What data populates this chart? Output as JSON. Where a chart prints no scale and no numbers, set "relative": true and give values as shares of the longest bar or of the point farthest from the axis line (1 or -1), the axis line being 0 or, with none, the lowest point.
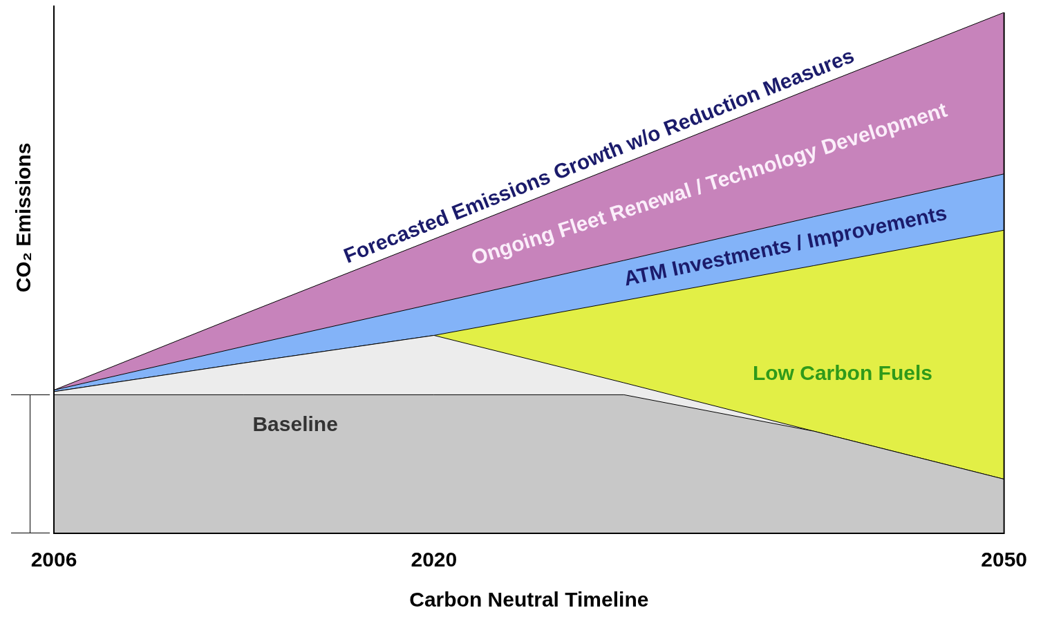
{
  "chart_data": {
    "type": "area",
    "stacked": true,
    "relative": true,
    "xlabel": "Carbon Neutral Timeline",
    "ylabel": "CO₂ Emissions",
    "categories": [
      "2006",
      null,
      "2020",
      null,
      null,
      "2050"
    ],
    "series": [
      {
        "name": "Baseline",
        "color": "#c8c8c8",
        "values": [
          0.266,
          0.266,
          0.266,
          0.266,
          0.196,
          0.104
        ]
      },
      {
        "color": "#ececec",
        "values": [
          0.006,
          0.061,
          0.114,
          0.023,
          0,
          0
        ]
      },
      {
        "name": "Low Carbon Fuels",
        "color": "#e2ef46",
        "values": [
          0,
          0,
          0,
          0.158,
          0.318,
          0.478
        ]
      },
      {
        "name": "ATM Investments / Improvements",
        "color": "#83b3f8",
        "values": [
          0.003,
          0.032,
          0.061,
          0.077,
          0.094,
          0.108
        ]
      },
      {
        "name": "Ongoing Fleet Renewal / Technology Development",
        "color": "#c783bb",
        "values": [
          0,
          0.062,
          0.124,
          0.186,
          0.248,
          0.31
        ]
      }
    ],
    "annotations": [
      "Forecasted Emissions Growth w/o Reduction Measures"
    ],
    "legend": false,
    "grid": false,
    "tick_labels": "x"
  }
}
